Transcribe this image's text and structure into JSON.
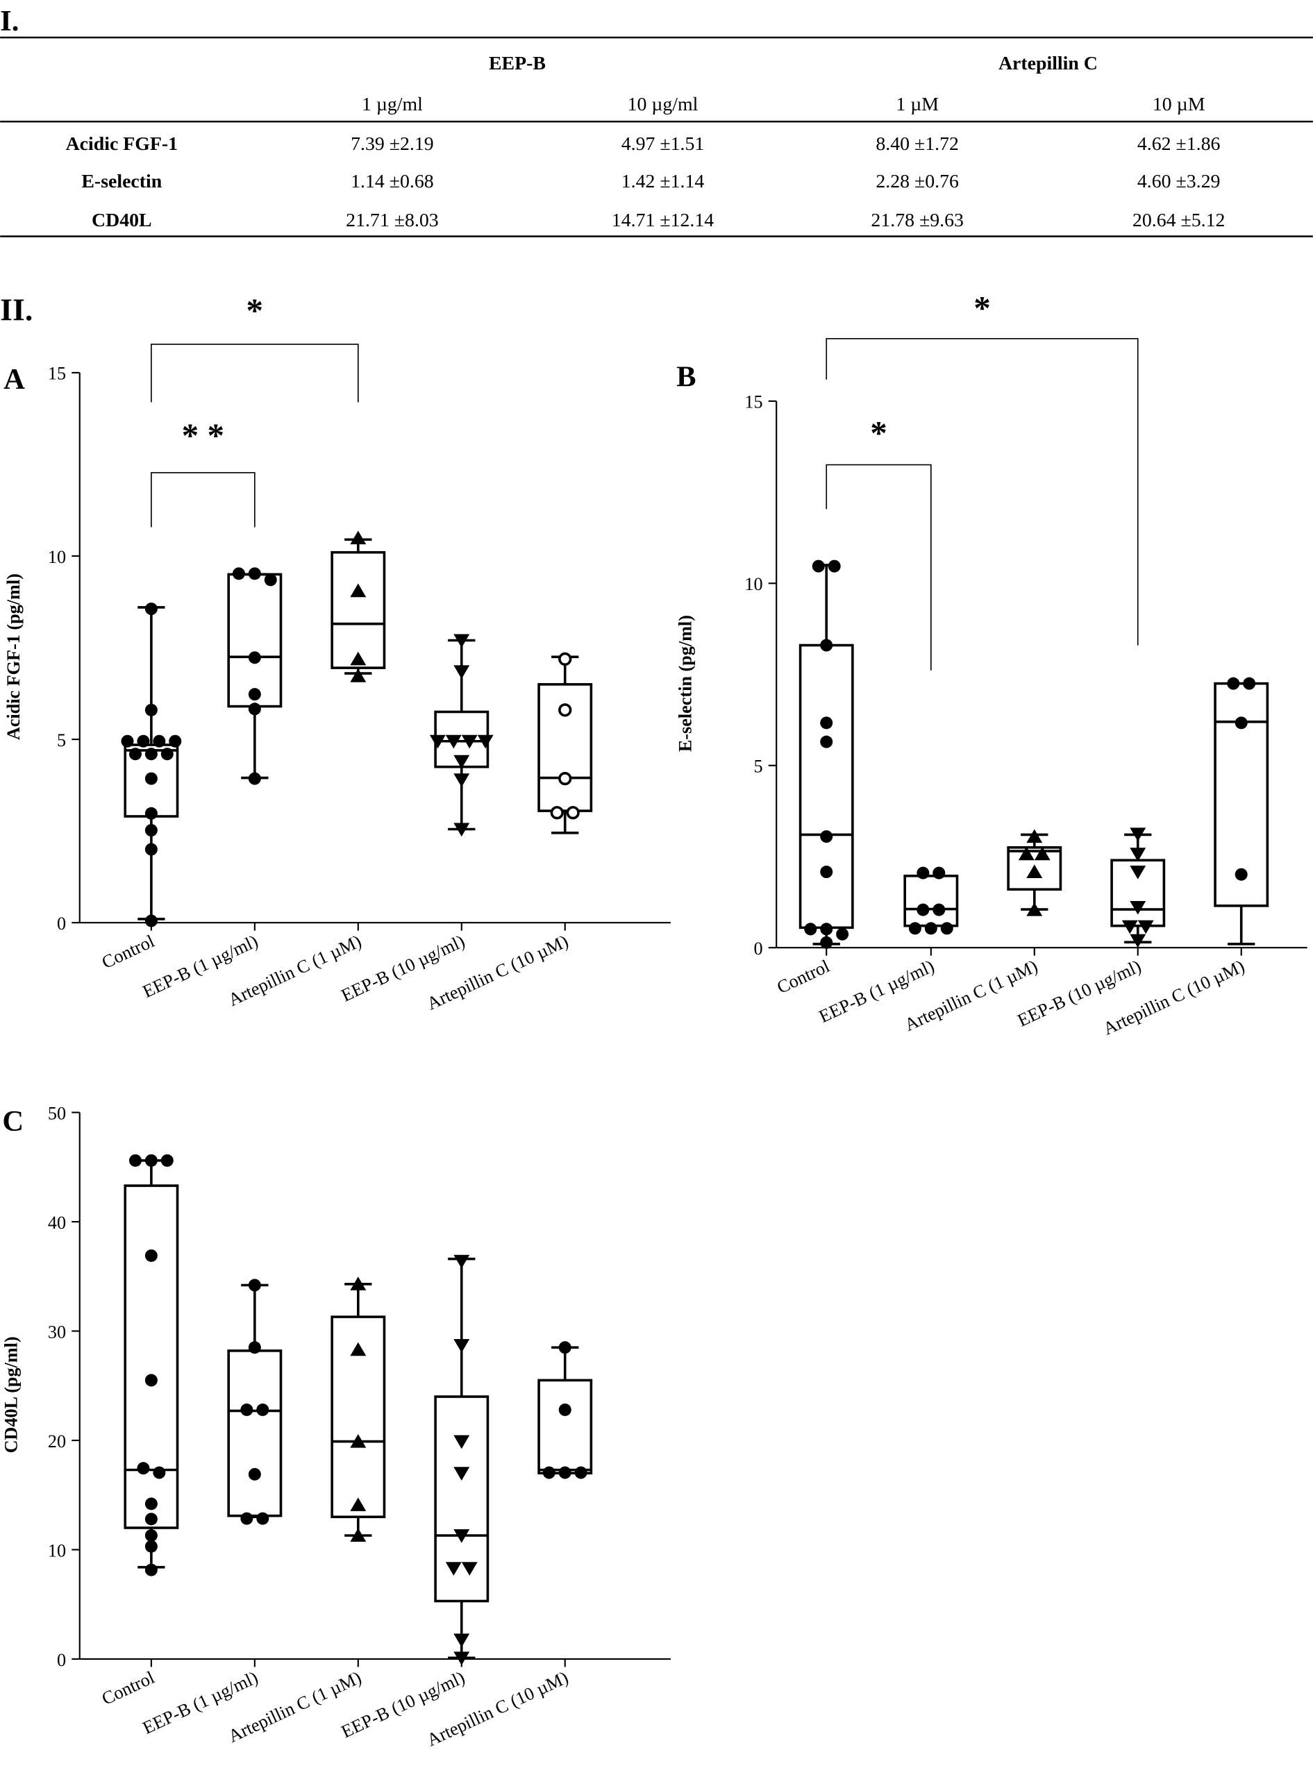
{
  "section_i": "I.",
  "section_ii": "II.",
  "table": {
    "groups": [
      "EEP-B",
      "Artepillin C"
    ],
    "columns": [
      "1 µg/ml",
      "10 µg/ml",
      "1 µM",
      "10 µM"
    ],
    "rows": [
      {
        "label": "Acidic FGF-1",
        "values": [
          "7.39 ±2.19",
          "4.97 ±1.51",
          "8.40 ±1.72",
          "4.62 ±1.86"
        ]
      },
      {
        "label": "E-selectin",
        "values": [
          "1.14 ±0.68",
          "1.42 ±1.14",
          "2.28 ±0.76",
          "4.60 ±3.29"
        ]
      },
      {
        "label": "CD40L",
        "values": [
          "21.71 ±8.03",
          "14.71 ±12.14",
          "21.78 ±9.63",
          "20.64 ±5.12"
        ]
      }
    ]
  },
  "chart_data": [
    {
      "panel": "A",
      "type": "box",
      "ylabel": "Acidic FGF-1 (pg/ml)",
      "ylim": [
        0,
        15
      ],
      "yticks": [
        "0",
        "5",
        "10",
        "15"
      ],
      "categories": [
        "Control",
        "EEP-B (1 µg/ml)",
        "Artepillin C (1 µM)",
        "EEP-B (10 µg/ml)",
        "Artepillin C (10 µM)"
      ],
      "groups": [
        {
          "marker": "circle",
          "min": 0.1,
          "q1": 2.9,
          "median": 4.7,
          "q3": 4.85,
          "max": 8.6,
          "points": [
            8.56,
            5.8,
            4.95,
            4.95,
            4.95,
            4.95,
            4.6,
            4.6,
            4.6,
            3.93,
            2.98,
            2.52,
            2.0,
            0.05
          ]
        },
        {
          "marker": "circle",
          "min": 3.95,
          "q1": 5.9,
          "median": 7.25,
          "q3": 9.5,
          "max": 9.5,
          "points": [
            9.52,
            9.52,
            9.35,
            7.23,
            6.23,
            5.83,
            3.93
          ]
        },
        {
          "marker": "triangle-up",
          "min": 6.8,
          "q1": 6.95,
          "median": 8.15,
          "q3": 10.1,
          "max": 10.45,
          "points": [
            10.49,
            9.05,
            7.19,
            6.73
          ]
        },
        {
          "marker": "triangle-down",
          "min": 2.55,
          "q1": 4.25,
          "median": 4.95,
          "q3": 5.75,
          "max": 7.7,
          "points": [
            7.7,
            6.85,
            4.95,
            4.95,
            4.95,
            4.95,
            4.4,
            3.9,
            2.55
          ]
        },
        {
          "marker": "open-circle",
          "min": 2.45,
          "q1": 3.05,
          "median": 3.95,
          "q3": 6.5,
          "max": 7.25,
          "points": [
            7.19,
            5.8,
            3.93,
            3.0,
            3.0
          ]
        }
      ],
      "significance": [
        {
          "from": 0,
          "to": 2,
          "label": "*"
        },
        {
          "from": 0,
          "to": 1,
          "label": "* *"
        }
      ]
    },
    {
      "panel": "B",
      "type": "box",
      "ylabel": "E-selectin (pg/ml)",
      "ylim": [
        0,
        15
      ],
      "yticks": [
        "0",
        "5",
        "10",
        "15"
      ],
      "categories": [
        "Control",
        "EEP-B (1 µg/ml)",
        "Artepillin C (1 µM)",
        "EEP-B (10 µg/ml)",
        "Artepillin C (10 µM)"
      ],
      "groups": [
        {
          "marker": "circle",
          "min": 0.1,
          "q1": 0.55,
          "median": 3.1,
          "q3": 8.3,
          "max": 10.5,
          "points": [
            10.47,
            10.47,
            8.3,
            6.17,
            5.65,
            3.05,
            2.08,
            0.51,
            0.51,
            0.37,
            0.14
          ]
        },
        {
          "marker": "circle",
          "min": 0.6,
          "q1": 0.6,
          "median": 1.06,
          "q3": 1.97,
          "max": 1.97,
          "points": [
            2.05,
            2.05,
            1.04,
            1.04,
            0.53,
            0.53,
            0.53
          ]
        },
        {
          "marker": "triangle-up",
          "min": 1.05,
          "q1": 1.6,
          "median": 2.65,
          "q3": 2.75,
          "max": 3.1,
          "points": [
            3.05,
            2.57,
            2.57,
            2.08,
            1.04
          ]
        },
        {
          "marker": "triangle-down",
          "min": 0.15,
          "q1": 0.6,
          "median": 1.05,
          "q3": 2.4,
          "max": 3.1,
          "points": [
            3.12,
            2.57,
            2.08,
            1.11,
            0.58,
            0.58,
            0.2
          ]
        },
        {
          "marker": "circle",
          "min": 0.1,
          "q1": 1.15,
          "median": 6.2,
          "q3": 7.25,
          "max": 7.25,
          "points": [
            7.25,
            7.25,
            6.17,
            2.01
          ]
        }
      ],
      "significance": [
        {
          "from": 0,
          "to": 3,
          "label": "*"
        },
        {
          "from": 0,
          "to": 1,
          "label": "*"
        }
      ]
    },
    {
      "panel": "C",
      "type": "box",
      "ylabel": "CD40L (pg/ml)",
      "ylim": [
        0,
        50
      ],
      "yticks": [
        "0",
        "10",
        "20",
        "30",
        "40",
        "50"
      ],
      "categories": [
        "Control",
        "EEP-B (1 µg/ml)",
        "Artepillin C (1 µM)",
        "EEP-B (10 µg/ml)",
        "Artepillin C (10 µM)"
      ],
      "groups": [
        {
          "marker": "circle",
          "min": 8.4,
          "q1": 12.0,
          "median": 17.3,
          "q3": 43.3,
          "max": 45.6,
          "points": [
            45.6,
            45.6,
            45.6,
            36.9,
            25.5,
            17.45,
            17.05,
            14.2,
            12.8,
            11.3,
            10.3,
            8.15
          ]
        },
        {
          "marker": "circle",
          "min": 13.0,
          "q1": 13.1,
          "median": 22.7,
          "q3": 28.2,
          "max": 34.2,
          "points": [
            34.2,
            28.5,
            22.8,
            22.8,
            16.9,
            12.85,
            12.85
          ]
        },
        {
          "marker": "triangle-up",
          "min": 11.3,
          "q1": 13.0,
          "median": 19.9,
          "q3": 31.3,
          "max": 34.3,
          "points": [
            34.3,
            28.3,
            19.9,
            14.1,
            11.3
          ]
        },
        {
          "marker": "triangle-down",
          "min": 0.1,
          "q1": 5.3,
          "median": 11.3,
          "q3": 24.0,
          "max": 36.6,
          "points": [
            36.4,
            28.7,
            19.9,
            17.0,
            11.3,
            8.3,
            8.3,
            1.75,
            0.1
          ]
        },
        {
          "marker": "circle",
          "min": 17.0,
          "q1": 17.0,
          "median": 17.3,
          "q3": 25.5,
          "max": 28.5,
          "points": [
            28.5,
            22.8,
            17.05,
            17.05,
            17.05
          ]
        }
      ],
      "significance": []
    }
  ]
}
